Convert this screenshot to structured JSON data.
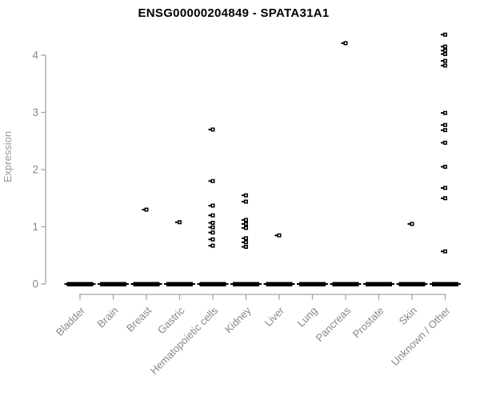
{
  "title": "ENSG00000204849 - SPATA31A1",
  "chart_data": {
    "type": "scatter",
    "subtype": "strip-plot-by-category",
    "title": "ENSG00000204849 - SPATA31A1",
    "ylabel": "Expression",
    "xlabel": "",
    "yticks": [
      0,
      1,
      2,
      3,
      4
    ],
    "ylim": [
      0,
      4.4
    ],
    "grid": false,
    "legend": "none",
    "marker": "small-open-black-square-with-left-dash",
    "categories": [
      "Bladder",
      "Brain",
      "Breast",
      "Gastric",
      "Hematopoietic cells",
      "Kidney",
      "Liver",
      "Lung",
      "Pancreas",
      "Prostate",
      "Skin",
      "Unknown / Other"
    ],
    "series": [
      {
        "category": "Bladder",
        "zero_cluster": true,
        "values": []
      },
      {
        "category": "Brain",
        "zero_cluster": true,
        "values": []
      },
      {
        "category": "Breast",
        "zero_cluster": true,
        "values": [
          1.3
        ]
      },
      {
        "category": "Gastric",
        "zero_cluster": true,
        "values": [
          1.08
        ]
      },
      {
        "category": "Hematopoietic cells",
        "zero_cluster": true,
        "values": [
          2.7,
          1.8,
          1.37,
          1.2,
          1.07,
          0.99,
          0.9,
          0.78,
          0.67
        ]
      },
      {
        "category": "Kidney",
        "zero_cluster": true,
        "values": [
          1.55,
          1.44,
          1.12,
          1.05,
          0.98,
          0.8,
          0.73,
          0.65
        ]
      },
      {
        "category": "Liver",
        "zero_cluster": true,
        "values": [
          0.85
        ]
      },
      {
        "category": "Lung",
        "zero_cluster": true,
        "values": []
      },
      {
        "category": "Pancreas",
        "zero_cluster": true,
        "values": [
          4.21
        ]
      },
      {
        "category": "Prostate",
        "zero_cluster": true,
        "values": []
      },
      {
        "category": "Skin",
        "zero_cluster": true,
        "values": [
          1.05
        ]
      },
      {
        "category": "Unknown / Other",
        "zero_cluster": true,
        "values": [
          4.36,
          4.15,
          4.08,
          4.02,
          3.9,
          3.82,
          2.99,
          2.78,
          2.69,
          2.47,
          2.05,
          1.68,
          1.5,
          0.57
        ]
      }
    ],
    "colors": {
      "marker": "#000000",
      "axis_line": "#a3a3a3",
      "tick_label": "#878787",
      "axis_title": "#999999",
      "title": "#000000",
      "background": "#ffffff"
    }
  }
}
